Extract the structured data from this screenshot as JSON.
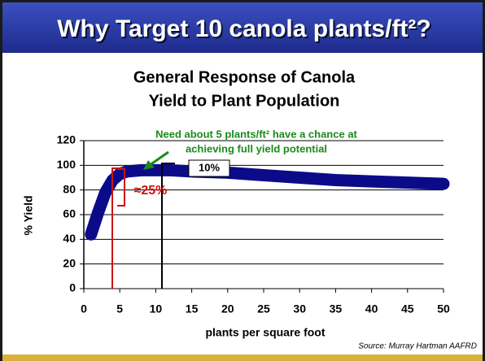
{
  "header": {
    "title": "Why Target 10 canola plants/ft²?"
  },
  "chart_data": {
    "type": "line",
    "title": [
      "General Response of Canola",
      "Yield to Plant Population"
    ],
    "x_label": "plants per square foot",
    "y_label": "% Yield",
    "x": [
      1,
      2,
      3,
      4,
      5,
      6,
      8,
      10,
      12,
      15,
      20,
      25,
      30,
      35,
      40,
      45,
      50
    ],
    "values": [
      44,
      62,
      78,
      88,
      93,
      95,
      96,
      96,
      96,
      95,
      94,
      92,
      90,
      88,
      87,
      86,
      85
    ],
    "color": "#0b0b8a",
    "xlim": [
      0,
      50
    ],
    "xticks": [
      0,
      5,
      10,
      15,
      20,
      25,
      30,
      35,
      40,
      45,
      50
    ],
    "ylim": [
      0,
      120
    ],
    "yticks": [
      0,
      20,
      40,
      60,
      80,
      100,
      120
    ],
    "grid": true,
    "annotations": [
      "Need about 5 plants/ft² have a chance at",
      "achieving full yield potential",
      "10%",
      "≈25%"
    ],
    "source": "Source:  Murray Hartman AAFRD"
  }
}
